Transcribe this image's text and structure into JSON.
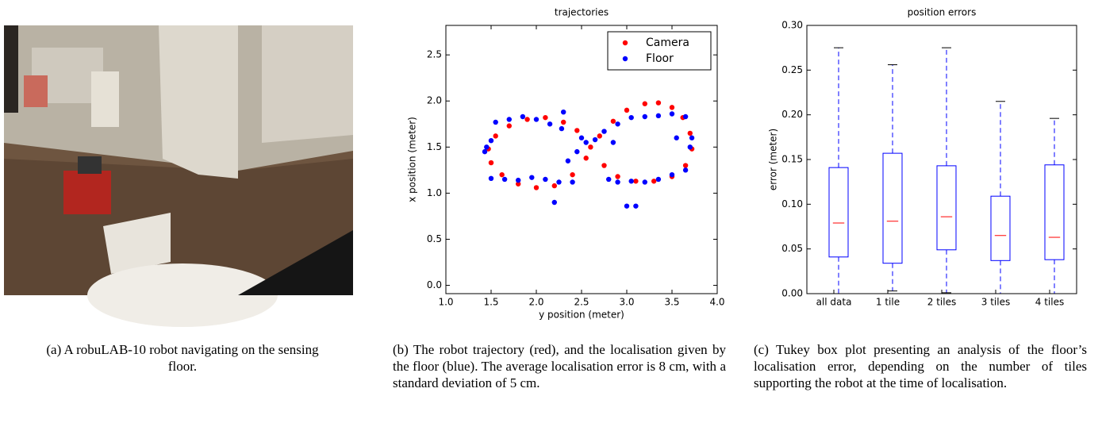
{
  "captions": [
    "(a) A robuLAB-10 robot navigating on the sensing floor.",
    "(b) The robot trajectory (red), and the localisation given by the floor (blue). The average localisation error is 8 cm, with a standard deviation of 5 cm.",
    "(c) Tukey box plot presenting an analysis of the floor’s localisation error, depending on the number of tiles supporting the robot at the time of localisation."
  ],
  "chart_data": [
    {
      "type": "scatter",
      "title": "trajectories",
      "x_label": "y position (meter)",
      "y_label": "x position (meter)",
      "xlim": [
        1.0,
        4.0
      ],
      "ylim": [
        -0.09,
        2.82
      ],
      "xticks": [
        {
          "value": 1,
          "label": "1.0"
        },
        1.5,
        {
          "value": 2,
          "label": "2.0"
        },
        2.5,
        {
          "value": 3,
          "label": "3.0"
        },
        3.5,
        {
          "value": 4,
          "label": "4.0"
        }
      ],
      "yticks": [
        {
          "value": 0,
          "label": "0.0"
        },
        0.5,
        {
          "value": 1,
          "label": "1.0"
        },
        1.5,
        {
          "value": 2,
          "label": "2.0"
        },
        2.5
      ],
      "legend": "upper right",
      "series": [
        {
          "name": "Camera",
          "color": "#ff0000",
          "x": [
            2.6,
            2.45,
            2.3,
            2.1,
            1.9,
            1.7,
            1.55,
            1.47,
            1.5,
            1.62,
            1.8,
            2.0,
            2.2,
            2.4,
            2.55,
            2.7,
            2.85,
            3.0,
            3.2,
            3.35,
            3.5,
            3.62,
            3.7,
            3.72,
            3.65,
            3.5,
            3.3,
            3.1,
            2.9,
            2.75
          ],
          "values": [
            1.5,
            1.68,
            1.77,
            1.82,
            1.8,
            1.73,
            1.62,
            1.48,
            1.33,
            1.2,
            1.1,
            1.06,
            1.08,
            1.2,
            1.38,
            1.62,
            1.78,
            1.9,
            1.97,
            1.98,
            1.93,
            1.82,
            1.65,
            1.48,
            1.3,
            1.18,
            1.13,
            1.13,
            1.18,
            1.3
          ]
        },
        {
          "name": "Floor",
          "color": "#0000ff",
          "x": [
            1.55,
            1.7,
            1.85,
            2.0,
            2.15,
            2.3,
            2.28,
            1.45,
            1.43,
            1.5,
            1.5,
            1.65,
            1.8,
            1.95,
            2.1,
            2.25,
            2.4,
            2.2,
            2.35,
            2.45,
            2.55,
            2.65,
            2.5,
            2.75,
            2.9,
            3.05,
            3.2,
            3.35,
            3.5,
            3.65,
            3.72,
            3.7,
            3.65,
            3.5,
            3.35,
            3.2,
            3.05,
            2.9,
            2.8,
            3.0,
            3.1,
            3.55,
            2.85
          ],
          "values": [
            1.77,
            1.8,
            1.83,
            1.8,
            1.75,
            1.88,
            1.7,
            1.5,
            1.45,
            1.57,
            1.16,
            1.15,
            1.14,
            1.17,
            1.15,
            1.12,
            1.12,
            0.9,
            1.35,
            1.45,
            1.55,
            1.58,
            1.6,
            1.67,
            1.75,
            1.82,
            1.83,
            1.84,
            1.86,
            1.83,
            1.6,
            1.5,
            1.25,
            1.2,
            1.15,
            1.12,
            1.13,
            1.12,
            1.15,
            0.86,
            0.86,
            1.6,
            1.55
          ]
        }
      ]
    },
    {
      "type": "box",
      "title": "position errors",
      "y_label": "error (meter)",
      "ylim": [
        0,
        0.3
      ],
      "yticks": [
        {
          "value": 0,
          "label": "0.00"
        },
        0.05,
        {
          "value": 0.1,
          "label": "0.10"
        },
        0.15,
        {
          "value": 0.2,
          "label": "0.20"
        },
        0.25,
        {
          "value": 0.3,
          "label": "0.30"
        }
      ],
      "categories": [
        "all data",
        "1 tile",
        "2 tiles",
        "3 tiles",
        "4 tiles"
      ],
      "color": "#0000ff",
      "median_color": "#ff0000",
      "whisker_low": [
        0.0,
        0.003,
        0.001,
        0.0,
        0.0
      ],
      "q1": [
        0.041,
        0.034,
        0.049,
        0.037,
        0.038
      ],
      "median": [
        0.079,
        0.081,
        0.086,
        0.065,
        0.063
      ],
      "q3": [
        0.141,
        0.157,
        0.143,
        0.109,
        0.144
      ],
      "whisker_high": [
        0.275,
        0.256,
        0.275,
        0.215,
        0.196
      ]
    }
  ]
}
